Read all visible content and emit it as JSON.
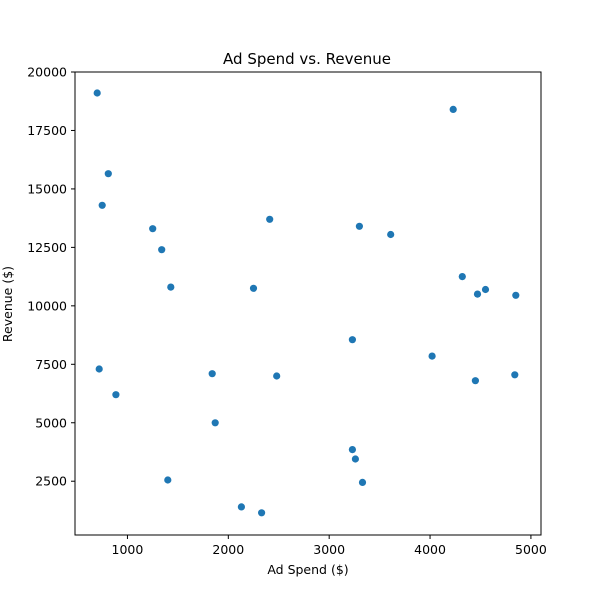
{
  "chart_data": {
    "type": "scatter",
    "title": "Ad Spend vs. Revenue",
    "xlabel": "Ad Spend ($)",
    "ylabel": "Revenue ($)",
    "xlim": [
      480,
      5100
    ],
    "ylim": [
      200,
      20000
    ],
    "xticks": [
      1000,
      2000,
      3000,
      4000,
      5000
    ],
    "yticks": [
      2500,
      5000,
      7500,
      10000,
      12500,
      15000,
      17500,
      20000
    ],
    "grid": false,
    "marker_color": "#1f77b4",
    "series": [
      {
        "x": [
          700,
          810,
          750,
          1250,
          1340,
          1430,
          720,
          885,
          1400,
          1840,
          1870,
          2130,
          2330,
          2250,
          2410,
          2480,
          3300,
          3230,
          3230,
          3260,
          3330,
          3610,
          4020,
          4230,
          4320,
          4470,
          4550,
          4850,
          4840,
          4450
        ],
        "y": [
          19100,
          15650,
          14300,
          13300,
          12400,
          10800,
          7300,
          6200,
          2550,
          7100,
          5000,
          1400,
          1150,
          10750,
          13700,
          7000,
          13400,
          8550,
          3850,
          3450,
          2450,
          13050,
          7850,
          18400,
          11250,
          10500,
          10700,
          10450,
          7050,
          6800
        ]
      }
    ]
  }
}
